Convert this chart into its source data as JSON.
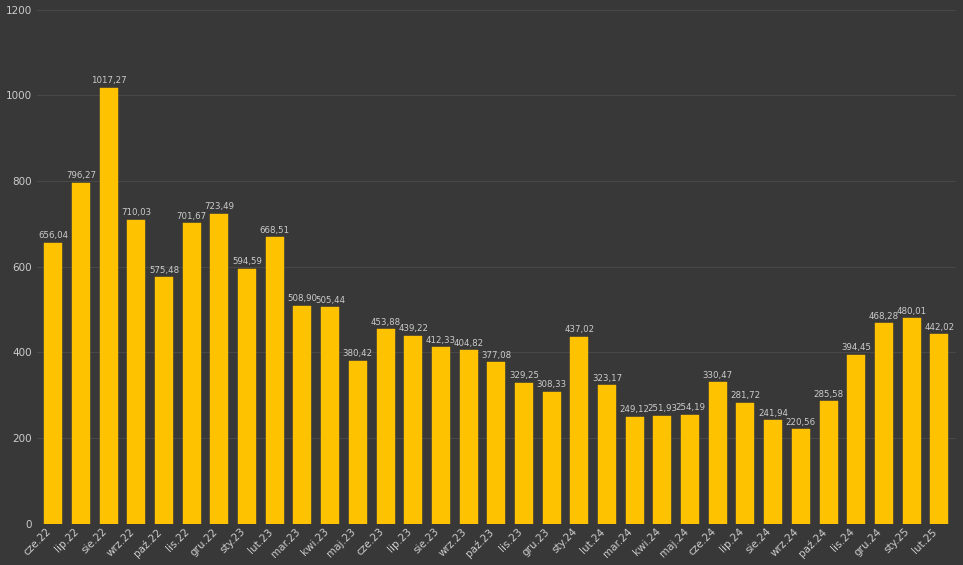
{
  "categories": [
    "cze.22",
    "lip.22",
    "sie.22",
    "wrz.22",
    "paź.22",
    "lis.22",
    "gru.22",
    "sty.23",
    "lut.23",
    "mar.23",
    "kwi.23",
    "maj.23",
    "cze.23",
    "lip.23",
    "sie.23",
    "wrz.23",
    "paź.23",
    "lis.23",
    "gru.23",
    "sty.24",
    "lut.24",
    "mar.24",
    "kwi.24",
    "maj.24",
    "cze.24",
    "lip.24",
    "sie.24",
    "wrz.24",
    "paź.24",
    "lis.24",
    "gru.24",
    "sty.25",
    "lut.25"
  ],
  "values": [
    656.04,
    796.27,
    1017.27,
    710.03,
    575.48,
    701.67,
    723.49,
    594.59,
    668.51,
    508.9,
    505.44,
    380.42,
    453.88,
    439.22,
    412.33,
    404.82,
    377.08,
    329.25,
    308.33,
    437.02,
    323.17,
    249.12,
    251.93,
    254.19,
    330.47,
    281.72,
    241.94,
    220.56,
    285.58,
    394.45,
    468.28,
    480.01,
    442.02
  ],
  "bar_color": "#FFC200",
  "background_color": "#383838",
  "text_color": "#cccccc",
  "grid_color": "#505050",
  "ylim": [
    0,
    1200
  ],
  "yticks": [
    0,
    200,
    400,
    600,
    800,
    1000,
    1200
  ],
  "value_fontsize": 6.2,
  "tick_fontsize": 7.5
}
